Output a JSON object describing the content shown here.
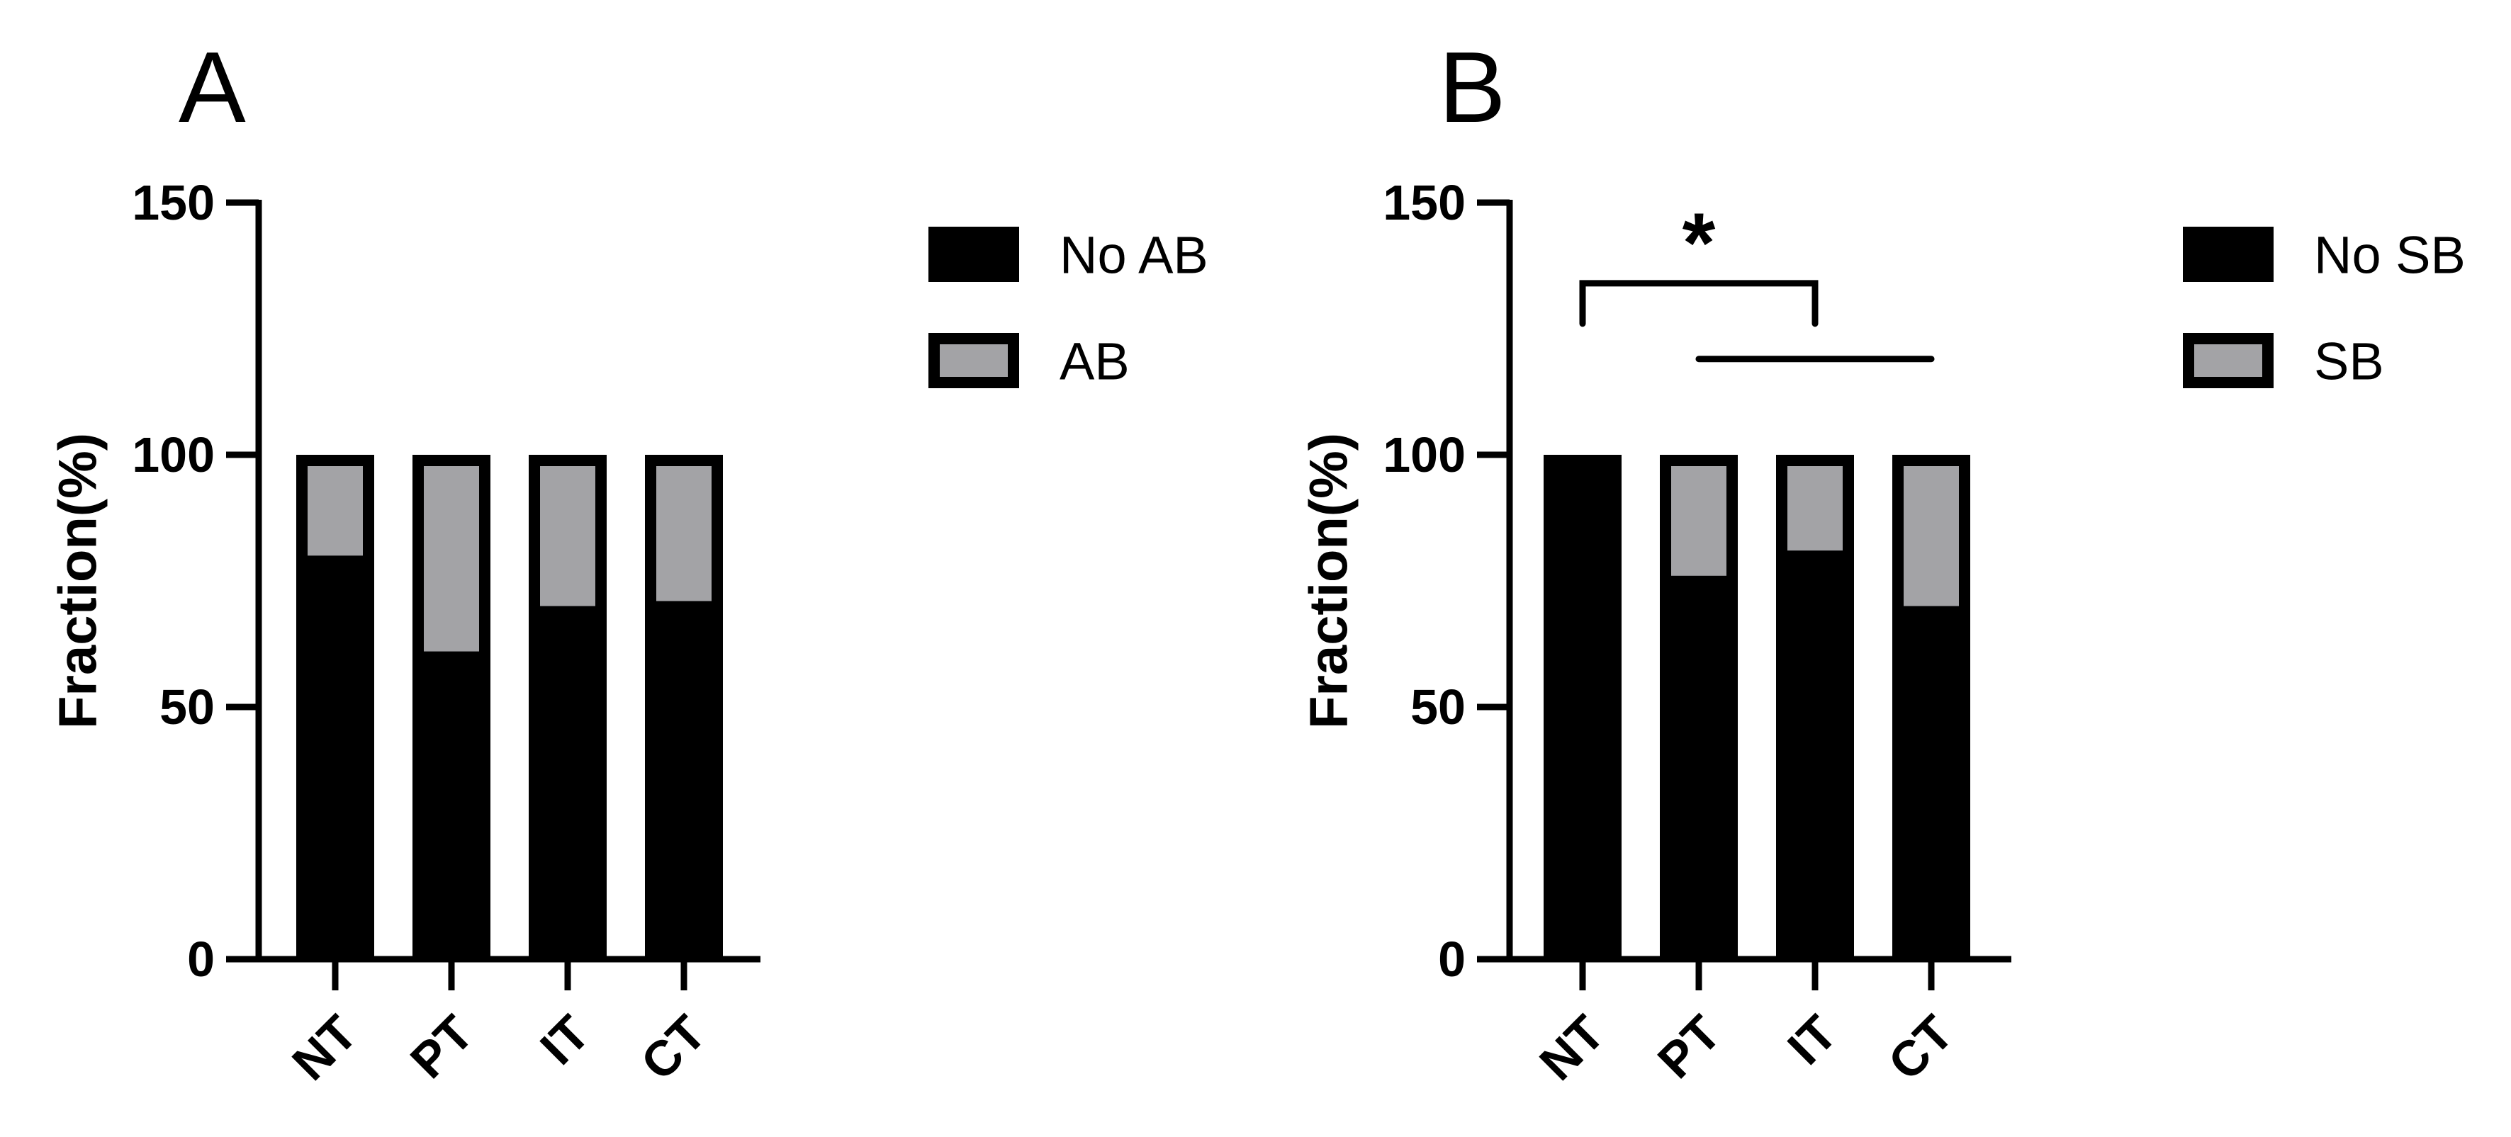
{
  "chart_data": [
    {
      "panel": "A",
      "type": "bar",
      "stacked": true,
      "categories": [
        "NT",
        "PT",
        "IT",
        "CT"
      ],
      "series": [
        {
          "name": "No AB",
          "values": [
            80,
            61,
            70,
            71
          ],
          "color": "#000000"
        },
        {
          "name": "AB",
          "values": [
            20,
            39,
            30,
            29
          ],
          "color": "#a3a3a6"
        }
      ],
      "ylabel": "Fraction(%)",
      "xlabel": "",
      "ylim": [
        0,
        150
      ],
      "yticks": [
        0,
        50,
        100,
        150
      ],
      "grid": false,
      "legend": "right"
    },
    {
      "panel": "B",
      "type": "bar",
      "stacked": true,
      "categories": [
        "NT",
        "PT",
        "IT",
        "CT"
      ],
      "series": [
        {
          "name": "No SB",
          "values": [
            100,
            76,
            81,
            70
          ],
          "color": "#000000"
        },
        {
          "name": "SB",
          "values": [
            0,
            24,
            19,
            30
          ],
          "color": "#a3a3a6"
        }
      ],
      "ylabel": "Fraction(%)",
      "xlabel": "",
      "ylim": [
        0,
        150
      ],
      "yticks": [
        0,
        50,
        100,
        150
      ],
      "grid": false,
      "legend": "right",
      "annotations": [
        {
          "type": "bracket",
          "from": "NT",
          "to": "IT",
          "y": 134,
          "drop": 8,
          "label": "*"
        },
        {
          "type": "line",
          "from": "PT",
          "to": "CT",
          "y": 119
        }
      ]
    }
  ]
}
